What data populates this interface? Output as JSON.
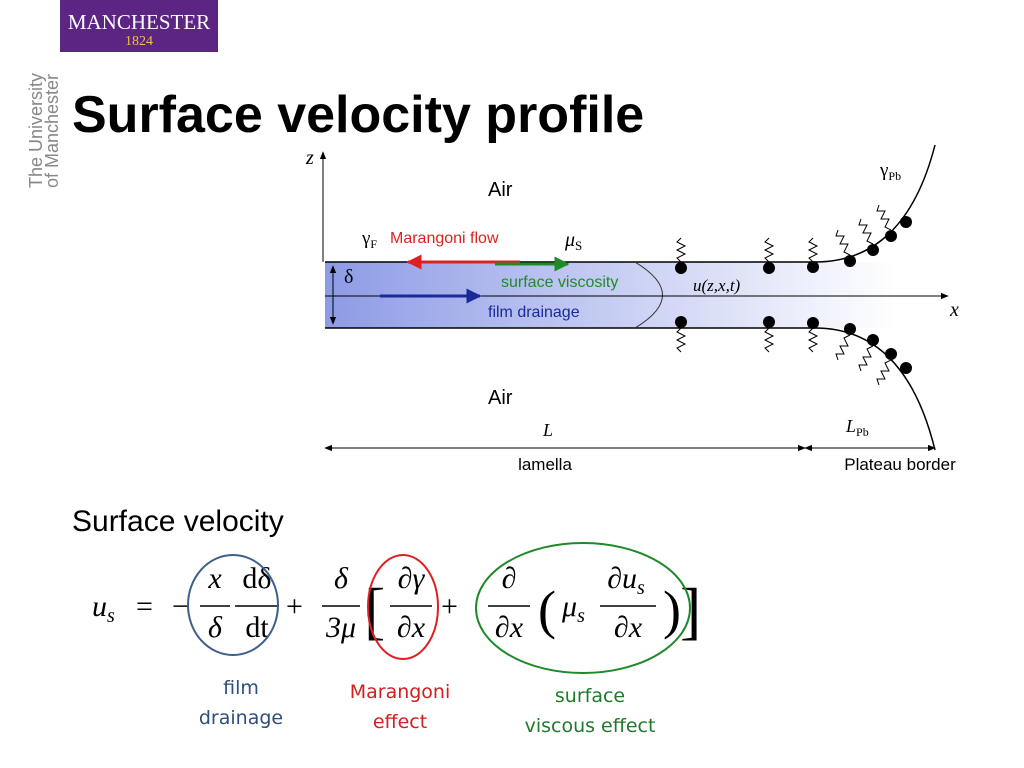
{
  "logo": {
    "name": "MANCHESTER",
    "year": "1824"
  },
  "side_text": {
    "line1": "The University",
    "line2": "of Manchester"
  },
  "title": "Surface velocity profile",
  "diagram": {
    "z_axis": "z",
    "x_axis": "x",
    "air_top": "Air",
    "air_bottom": "Air",
    "gamma_f": "γ",
    "gamma_f_sub": "F",
    "marangoni_flow": "Marangoni flow",
    "mu_s": "μ",
    "mu_s_sub": "S",
    "delta": "δ",
    "surface_viscosity": "surface viscosity",
    "velocity": "u(z,x,t)",
    "film_drainage": "film drainage",
    "gamma_pb": "γ",
    "gamma_pb_sub": "Pb",
    "length_l": "L",
    "length_lpb": "L",
    "length_lpb_sub": "Pb",
    "lamella": "lamella",
    "plateau_border": "Plateau border"
  },
  "subheading": "Surface velocity",
  "equation": {
    "lhs": "u",
    "lhs_sub": "s",
    "equals": "=",
    "minus": "−",
    "frac1": {
      "num": "x",
      "den": "δ"
    },
    "frac2": {
      "num": "dδ",
      "den": "dt"
    },
    "plus1": "+",
    "frac3": {
      "num": "δ",
      "den": "3μ"
    },
    "lbracket": "[",
    "frac4": {
      "num": "∂γ",
      "den": "∂x"
    },
    "plus2": "+",
    "frac5": {
      "num": "∂",
      "den": "∂x"
    },
    "lparen": "(",
    "mu": "μ",
    "mu_sub": "s",
    "frac6": {
      "num": "∂u",
      "num_sub": "s",
      "den": "∂x"
    },
    "rparen": ")",
    "rbracket": "]"
  },
  "annotations": {
    "film_drainage": [
      "film",
      "drainage"
    ],
    "marangoni": [
      "Marangoni",
      "effect"
    ],
    "viscous": [
      "surface",
      "viscous effect"
    ]
  }
}
